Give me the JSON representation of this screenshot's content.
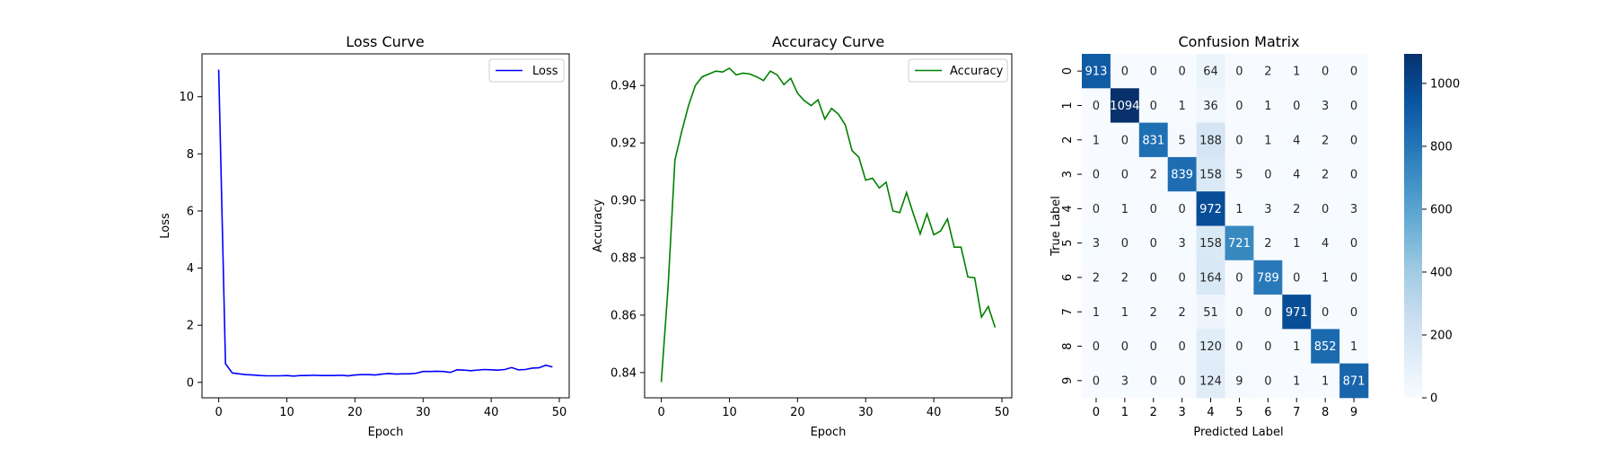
{
  "chart_data": [
    {
      "type": "line",
      "title": "Loss Curve",
      "xlabel": "Epoch",
      "ylabel": "Loss",
      "xlim": [
        -2.45,
        51.45
      ],
      "ylim": [
        -0.54,
        11.5
      ],
      "xticks": [
        0,
        10,
        20,
        30,
        40,
        50
      ],
      "yticks": [
        0,
        2,
        4,
        6,
        8,
        10
      ],
      "grid": false,
      "legend_position": "top-right",
      "series": [
        {
          "name": "Loss",
          "color": "#0000ff",
          "x": [
            0,
            1,
            2,
            3,
            4,
            5,
            6,
            7,
            8,
            9,
            10,
            11,
            12,
            13,
            14,
            15,
            16,
            17,
            18,
            19,
            20,
            21,
            22,
            23,
            24,
            25,
            26,
            27,
            28,
            29,
            30,
            31,
            32,
            33,
            34,
            35,
            36,
            37,
            38,
            39,
            40,
            41,
            42,
            43,
            44,
            45,
            46,
            47,
            48,
            49
          ],
          "y": [
            10.95,
            0.65,
            0.33,
            0.3,
            0.27,
            0.26,
            0.24,
            0.23,
            0.23,
            0.23,
            0.24,
            0.22,
            0.24,
            0.24,
            0.25,
            0.24,
            0.24,
            0.24,
            0.25,
            0.23,
            0.26,
            0.27,
            0.27,
            0.26,
            0.29,
            0.31,
            0.29,
            0.3,
            0.3,
            0.32,
            0.38,
            0.38,
            0.39,
            0.38,
            0.35,
            0.44,
            0.43,
            0.41,
            0.43,
            0.45,
            0.44,
            0.43,
            0.45,
            0.52,
            0.44,
            0.45,
            0.5,
            0.51,
            0.6,
            0.54
          ]
        }
      ]
    },
    {
      "type": "line",
      "title": "Accuracy Curve",
      "xlabel": "Epoch",
      "ylabel": "Accuracy",
      "xlim": [
        -2.45,
        51.45
      ],
      "ylim": [
        0.8312,
        0.951
      ],
      "xticks": [
        0,
        10,
        20,
        30,
        40,
        50
      ],
      "yticks": [
        0.84,
        0.86,
        0.88,
        0.9,
        0.92,
        0.94
      ],
      "ytick_labels": [
        "0.84",
        "0.86",
        "0.88",
        "0.90",
        "0.92",
        "0.94"
      ],
      "grid": false,
      "legend_position": "top-right",
      "series": [
        {
          "name": "Accuracy",
          "color": "#008000",
          "x": [
            0,
            1,
            2,
            3,
            4,
            5,
            6,
            7,
            8,
            9,
            10,
            11,
            12,
            13,
            14,
            15,
            16,
            17,
            18,
            19,
            20,
            21,
            22,
            23,
            24,
            25,
            26,
            27,
            28,
            29,
            30,
            31,
            32,
            33,
            34,
            35,
            36,
            37,
            38,
            39,
            40,
            41,
            42,
            43,
            44,
            45,
            46,
            47,
            48,
            49
          ],
          "y": [
            0.8367,
            0.87,
            0.914,
            0.924,
            0.933,
            0.94,
            0.943,
            0.944,
            0.945,
            0.9447,
            0.946,
            0.9437,
            0.9443,
            0.944,
            0.943,
            0.9417,
            0.945,
            0.9437,
            0.9403,
            0.9425,
            0.9373,
            0.9347,
            0.933,
            0.935,
            0.9283,
            0.932,
            0.93,
            0.9263,
            0.9173,
            0.915,
            0.907,
            0.9077,
            0.9043,
            0.9063,
            0.8963,
            0.8957,
            0.9027,
            0.8953,
            0.8883,
            0.8953,
            0.888,
            0.8893,
            0.8935,
            0.8837,
            0.8837,
            0.8733,
            0.873,
            0.8593,
            0.863,
            0.8557
          ]
        }
      ]
    },
    {
      "type": "heatmap",
      "title": "Confusion Matrix",
      "xlabel": "Predicted Label",
      "ylabel": "True Label",
      "x_categories": [
        "0",
        "1",
        "2",
        "3",
        "4",
        "5",
        "6",
        "7",
        "8",
        "9"
      ],
      "y_categories": [
        "0",
        "1",
        "2",
        "3",
        "4",
        "5",
        "6",
        "7",
        "8",
        "9"
      ],
      "values": [
        [
          913,
          0,
          0,
          0,
          64,
          0,
          2,
          1,
          0,
          0
        ],
        [
          0,
          1094,
          0,
          1,
          36,
          0,
          1,
          0,
          3,
          0
        ],
        [
          1,
          0,
          831,
          5,
          188,
          0,
          1,
          4,
          2,
          0
        ],
        [
          0,
          0,
          2,
          839,
          158,
          5,
          0,
          4,
          2,
          0
        ],
        [
          0,
          1,
          0,
          0,
          972,
          1,
          3,
          2,
          0,
          3
        ],
        [
          3,
          0,
          0,
          3,
          158,
          721,
          2,
          1,
          4,
          0
        ],
        [
          2,
          2,
          0,
          0,
          164,
          0,
          789,
          0,
          1,
          0
        ],
        [
          1,
          1,
          2,
          2,
          51,
          0,
          0,
          971,
          0,
          0
        ],
        [
          0,
          0,
          0,
          0,
          120,
          0,
          0,
          1,
          852,
          1
        ],
        [
          0,
          3,
          0,
          0,
          124,
          9,
          0,
          1,
          1,
          871
        ]
      ],
      "colormap": "Blues",
      "colorbar": {
        "min": 0,
        "max": 1094,
        "ticks": [
          0,
          200,
          400,
          600,
          800,
          1000
        ]
      }
    }
  ]
}
